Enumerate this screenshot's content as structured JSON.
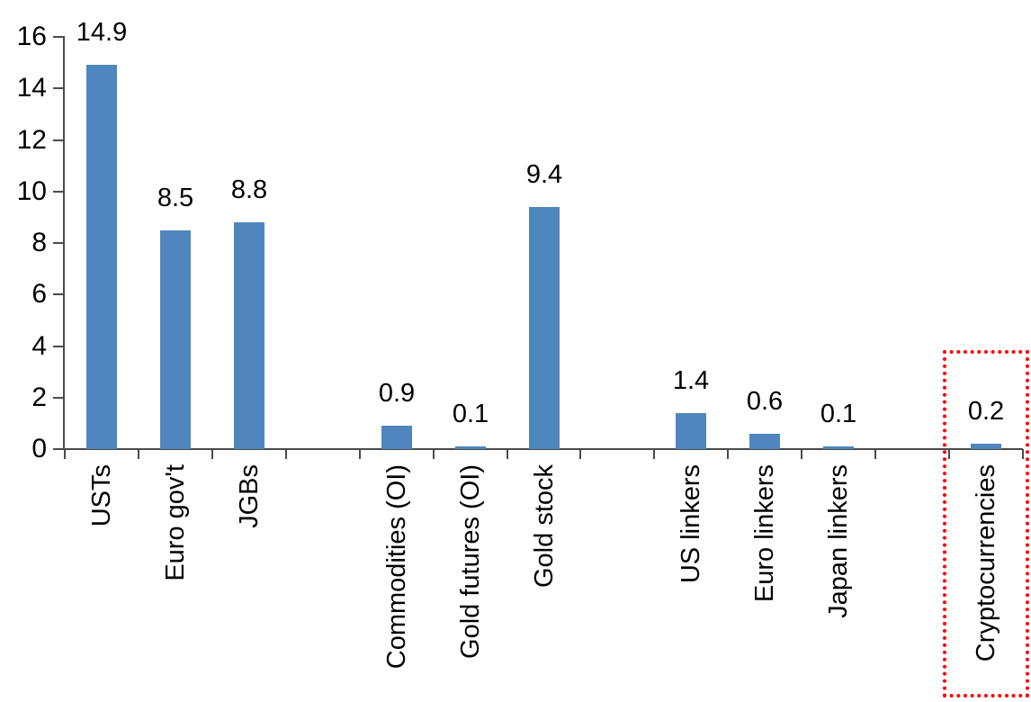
{
  "chart_data": {
    "type": "bar",
    "title": "",
    "xlabel": "",
    "ylabel": "",
    "categories": [
      "USTs",
      "Euro gov't",
      "JGBs",
      "Commodities (OI)",
      "Gold futures (OI)",
      "Gold stock",
      "US linkers",
      "Euro linkers",
      "Japan linkers",
      "Cryptocurrencies"
    ],
    "values": [
      14.9,
      8.5,
      8.8,
      0.9,
      0.1,
      9.4,
      1.4,
      0.6,
      0.1,
      0.2
    ],
    "value_labels": [
      "14.9",
      "8.5",
      "8.8",
      "0.9",
      "0.1",
      "9.4",
      "1.4",
      "0.6",
      "0.1",
      "0.2"
    ],
    "slots": [
      0,
      1,
      2,
      4,
      5,
      6,
      8,
      9,
      10,
      12
    ],
    "total_slots": 13,
    "ylim": [
      0,
      16
    ],
    "yticks": [
      0,
      2,
      4,
      6,
      8,
      10,
      12,
      14,
      16
    ],
    "grid": false,
    "legend": "none",
    "bar_color": "#4F86BD",
    "axis_color": "#4a4a4a",
    "text_color": "#000000",
    "highlight": {
      "category": "Cryptocurrencies",
      "shape": "dotted-rectangle",
      "color": "#FF0000"
    }
  }
}
